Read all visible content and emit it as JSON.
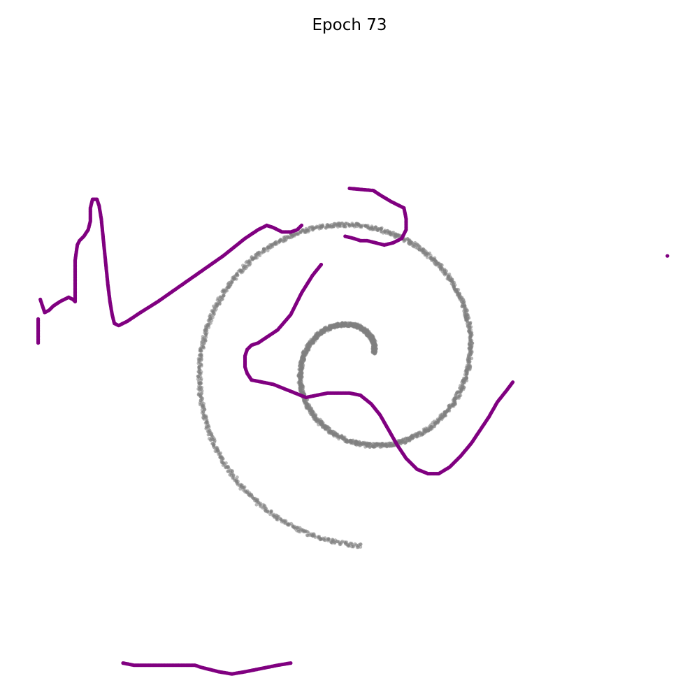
{
  "chart_data": {
    "type": "scatter",
    "title": "Epoch 73",
    "xlabel": "",
    "ylabel": "",
    "axes_visible": false,
    "grid": false,
    "legend": "none",
    "xlim": [
      -1.6,
      1.6
    ],
    "ylim": [
      -1.6,
      1.6
    ],
    "series": [
      {
        "role": "target",
        "color": "#808080",
        "opacity": 0.55,
        "curve": "spiral",
        "center": [
          0.05,
          -0.05
        ],
        "theta_range": [
          0.5,
          11.0
        ],
        "radius_per_radian": 0.0745,
        "start_radius": 0.07,
        "points": 2600
      },
      {
        "role": "generated",
        "color": "#800080",
        "opacity": 1.0,
        "points": [
          [
            -1.43,
            0.14
          ],
          [
            -1.43,
            0.03
          ],
          [
            -1.42,
            0.23
          ],
          [
            -1.4,
            0.17
          ],
          [
            -1.38,
            0.18
          ],
          [
            -1.36,
            0.2
          ],
          [
            -1.33,
            0.22
          ],
          [
            -1.31,
            0.23
          ],
          [
            -1.29,
            0.24
          ],
          [
            -1.27,
            0.23
          ],
          [
            -1.26,
            0.22
          ],
          [
            -1.26,
            0.31
          ],
          [
            -1.26,
            0.41
          ],
          [
            -1.25,
            0.48
          ],
          [
            -1.24,
            0.5
          ],
          [
            -1.22,
            0.52
          ],
          [
            -1.2,
            0.55
          ],
          [
            -1.19,
            0.59
          ],
          [
            -1.19,
            0.65
          ],
          [
            -1.18,
            0.69
          ],
          [
            -1.16,
            0.69
          ],
          [
            -1.15,
            0.66
          ],
          [
            -1.14,
            0.6
          ],
          [
            -1.13,
            0.5
          ],
          [
            -1.12,
            0.4
          ],
          [
            -1.11,
            0.3
          ],
          [
            -1.1,
            0.22
          ],
          [
            -1.09,
            0.16
          ],
          [
            -1.08,
            0.12
          ],
          [
            -1.06,
            0.11
          ],
          [
            -1.02,
            0.13
          ],
          [
            -0.96,
            0.17
          ],
          [
            -0.88,
            0.22
          ],
          [
            -0.78,
            0.29
          ],
          [
            -0.68,
            0.36
          ],
          [
            -0.58,
            0.43
          ],
          [
            -0.48,
            0.51
          ],
          [
            -0.42,
            0.55
          ],
          [
            -0.38,
            0.57
          ],
          [
            -0.35,
            0.56
          ],
          [
            -0.31,
            0.54
          ],
          [
            -0.27,
            0.54
          ],
          [
            -0.24,
            0.55
          ],
          [
            -0.22,
            0.57
          ],
          [
            -0.13,
            0.39
          ],
          [
            -0.17,
            0.34
          ],
          [
            -0.22,
            0.26
          ],
          [
            -0.27,
            0.16
          ],
          [
            -0.33,
            0.09
          ],
          [
            -0.39,
            0.05
          ],
          [
            -0.42,
            0.03
          ],
          [
            -0.45,
            0.02
          ],
          [
            -0.47,
            0.0
          ],
          [
            -0.48,
            -0.03
          ],
          [
            -0.48,
            -0.08
          ],
          [
            -0.47,
            -0.11
          ],
          [
            -0.45,
            -0.14
          ],
          [
            -0.4,
            -0.15
          ],
          [
            -0.35,
            -0.16
          ],
          [
            -0.3,
            -0.18
          ],
          [
            -0.25,
            -0.2
          ],
          [
            -0.2,
            -0.22
          ],
          [
            -0.15,
            -0.21
          ],
          [
            -0.1,
            -0.2
          ],
          [
            -0.05,
            -0.2
          ],
          [
            0.0,
            -0.2
          ],
          [
            0.05,
            -0.21
          ],
          [
            0.1,
            -0.25
          ],
          [
            0.14,
            -0.3
          ],
          [
            0.18,
            -0.37
          ],
          [
            0.22,
            -0.44
          ],
          [
            0.26,
            -0.5
          ],
          [
            0.31,
            -0.55
          ],
          [
            0.36,
            -0.57
          ],
          [
            0.41,
            -0.57
          ],
          [
            0.46,
            -0.54
          ],
          [
            0.51,
            -0.49
          ],
          [
            0.56,
            -0.43
          ],
          [
            0.6,
            -0.37
          ],
          [
            0.64,
            -0.31
          ],
          [
            0.68,
            -0.24
          ],
          [
            0.72,
            -0.19
          ],
          [
            0.75,
            -0.15
          ],
          [
            0.0,
            0.74
          ],
          [
            0.11,
            0.73
          ],
          [
            0.14,
            0.71
          ],
          [
            0.19,
            0.68
          ],
          [
            0.25,
            0.65
          ],
          [
            0.26,
            0.6
          ],
          [
            0.26,
            0.55
          ],
          [
            0.24,
            0.51
          ],
          [
            0.2,
            0.49
          ],
          [
            0.16,
            0.48
          ],
          [
            0.08,
            0.5
          ],
          [
            0.05,
            0.5
          ],
          [
            0.02,
            0.51
          ],
          [
            -0.02,
            0.52
          ],
          [
            1.46,
            0.43
          ],
          [
            -1.04,
            -1.44
          ],
          [
            -0.99,
            -1.45
          ],
          [
            -0.94,
            -1.45
          ],
          [
            -0.89,
            -1.45
          ],
          [
            -0.79,
            -1.45
          ],
          [
            -0.71,
            -1.45
          ],
          [
            -0.68,
            -1.46
          ],
          [
            -0.6,
            -1.48
          ],
          [
            -0.54,
            -1.49
          ],
          [
            -0.48,
            -1.48
          ],
          [
            -0.43,
            -1.47
          ],
          [
            -0.38,
            -1.46
          ],
          [
            -0.33,
            -1.45
          ],
          [
            -0.27,
            -1.44
          ]
        ]
      }
    ]
  }
}
